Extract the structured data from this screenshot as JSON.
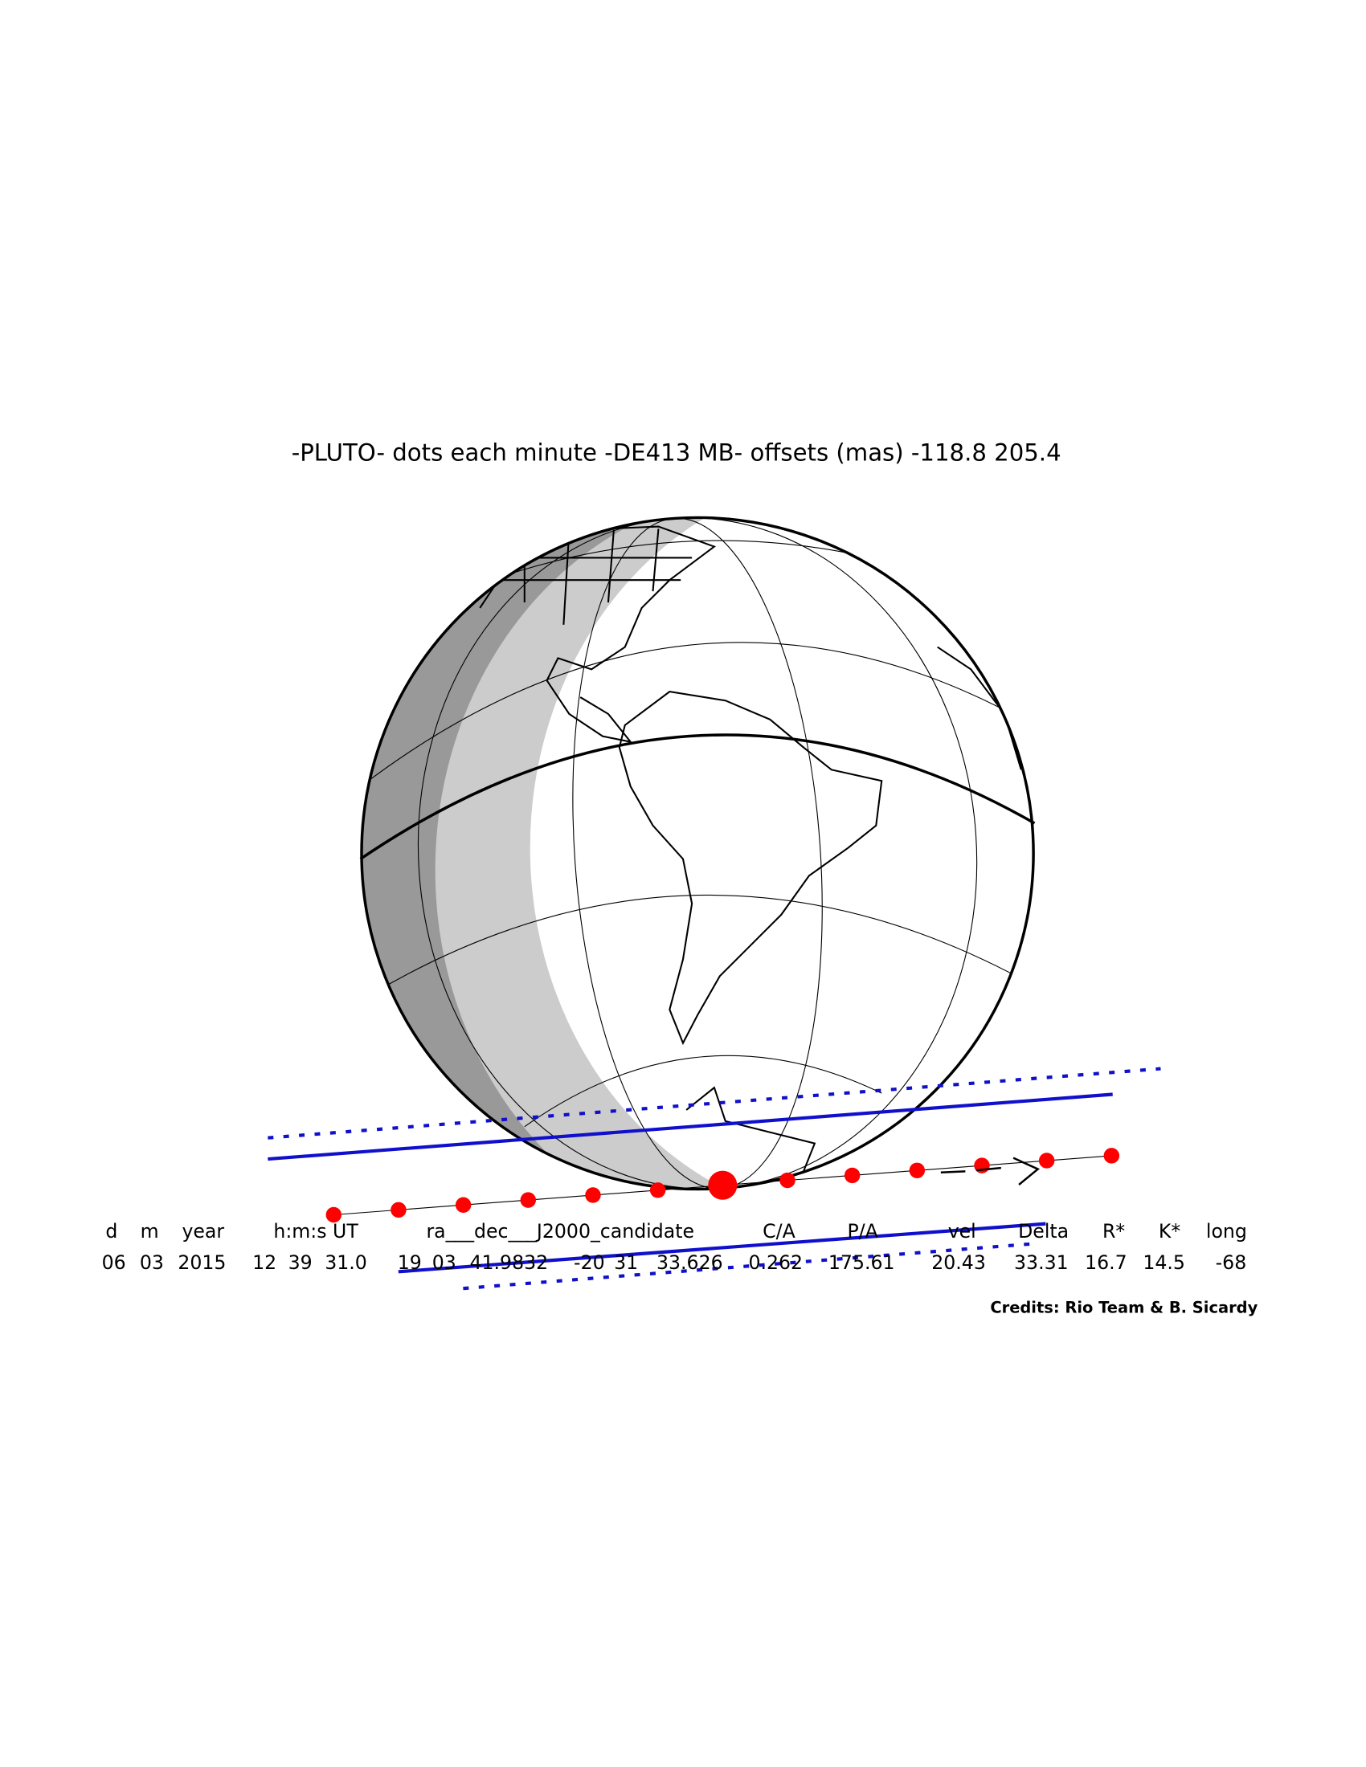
{
  "title": "-PLUTO- dots each minute -DE413 MB- offsets (mas) -118.8  205.4",
  "table": {
    "headers": [
      "d",
      "m",
      "year",
      "h:m:s UT",
      "ra___dec___J2000_candidate",
      "C/A",
      "P/A",
      "vel",
      "Delta",
      "R*",
      "K*",
      "long"
    ],
    "values": [
      "06",
      "03",
      "2015",
      "12",
      "39",
      "31.0",
      "19",
      "03",
      "41.9832",
      "-20",
      "31",
      "33.626",
      "0.262",
      "175.61",
      "20.43",
      "33.31",
      "16.7",
      "14.5",
      "-68"
    ]
  },
  "credits": "Credits: Rio Team & B. Sicardy"
}
